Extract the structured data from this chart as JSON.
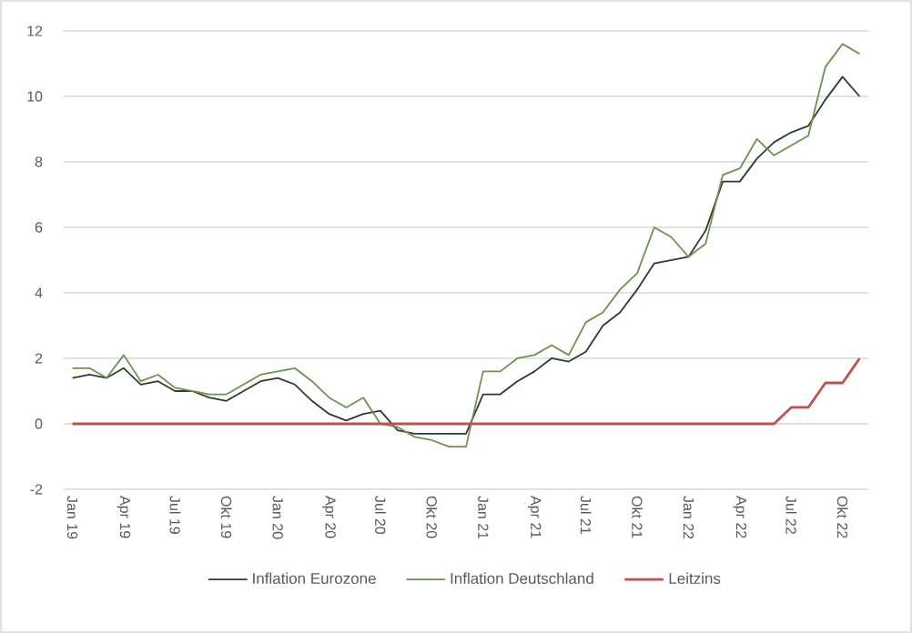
{
  "chart_data": {
    "type": "line",
    "categories": [
      "Jan 19",
      null,
      null,
      "Apr 19",
      null,
      null,
      "Jul 19",
      null,
      null,
      "Okt 19",
      null,
      null,
      "Jan 20",
      null,
      null,
      "Apr 20",
      null,
      null,
      "Jul 20",
      null,
      null,
      "Okt 20",
      null,
      null,
      "Jan 21",
      null,
      null,
      "Apr 21",
      null,
      null,
      "Jul 21",
      null,
      null,
      "Okt 21",
      null,
      null,
      "Jan 22",
      null,
      null,
      "Apr 22",
      null,
      null,
      "Jul 22",
      null,
      null,
      "Okt 22",
      null
    ],
    "series": [
      {
        "name": "Inflation Eurozone",
        "color": "#2f3b2f",
        "values": [
          1.4,
          1.5,
          1.4,
          1.7,
          1.2,
          1.3,
          1.0,
          1.0,
          0.8,
          0.7,
          1.0,
          1.3,
          1.4,
          1.2,
          0.7,
          0.3,
          0.1,
          0.3,
          0.4,
          -0.2,
          -0.3,
          -0.3,
          -0.3,
          -0.3,
          0.9,
          0.9,
          1.3,
          1.6,
          2.0,
          1.9,
          2.2,
          3.0,
          3.4,
          4.1,
          4.9,
          5.0,
          5.1,
          5.9,
          7.4,
          7.4,
          8.1,
          8.6,
          8.9,
          9.1,
          9.9,
          10.6,
          10.0
        ]
      },
      {
        "name": "Inflation Deutschland",
        "color": "#6f9150",
        "values": [
          1.7,
          1.7,
          1.4,
          2.1,
          1.3,
          1.5,
          1.1,
          1.0,
          0.9,
          0.9,
          1.2,
          1.5,
          1.6,
          1.7,
          1.3,
          0.8,
          0.5,
          0.8,
          0.0,
          -0.1,
          -0.4,
          -0.5,
          -0.7,
          -0.7,
          1.6,
          1.6,
          2.0,
          2.1,
          2.4,
          2.1,
          3.1,
          3.4,
          4.1,
          4.6,
          6.0,
          5.7,
          5.1,
          5.5,
          7.6,
          7.8,
          8.7,
          8.2,
          8.5,
          8.8,
          10.9,
          11.6,
          11.3
        ]
      },
      {
        "name": "Leitzins",
        "color": "#c0504d",
        "values": [
          0,
          0,
          0,
          0,
          0,
          0,
          0,
          0,
          0,
          0,
          0,
          0,
          0,
          0,
          0,
          0,
          0,
          0,
          0,
          0,
          0,
          0,
          0,
          0,
          0,
          0,
          0,
          0,
          0,
          0,
          0,
          0,
          0,
          0,
          0,
          0,
          0,
          0,
          0,
          0,
          0,
          0,
          0.5,
          0.5,
          1.25,
          1.25,
          2.0
        ]
      }
    ],
    "ylim": [
      -2,
      12
    ],
    "yticks": [
      -2,
      0,
      2,
      4,
      6,
      8,
      10,
      12
    ],
    "grid": "y",
    "legend": "bottom",
    "marker": "none",
    "line_style": "solid"
  }
}
